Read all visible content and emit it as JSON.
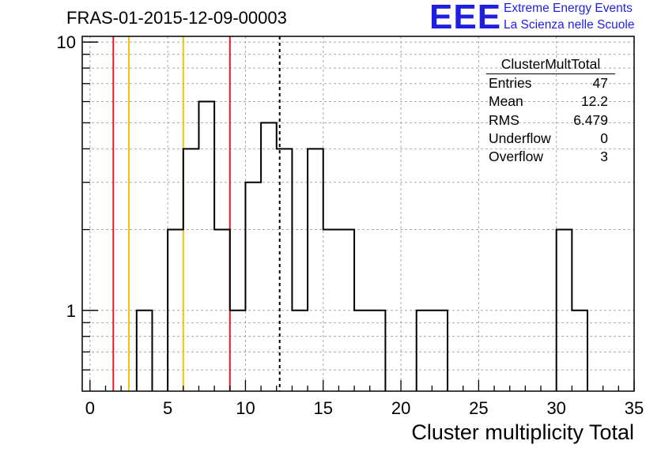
{
  "chart_data": {
    "type": "histogram",
    "title": "FRAS-01-2015-12-09-00003",
    "xlabel": "Cluster multiplicity Total",
    "ylabel": "",
    "xlim": [
      -0.5,
      35
    ],
    "ylim": [
      0.5,
      10.5
    ],
    "yscale": "log",
    "grid": true,
    "bin_width": 1,
    "bin_low_edges": [
      3,
      4,
      5,
      6,
      7,
      8,
      9,
      10,
      11,
      12,
      13,
      14,
      15,
      16,
      17,
      18,
      19,
      20,
      21,
      22,
      23,
      24,
      25,
      26,
      27,
      28,
      29,
      30,
      31
    ],
    "values": [
      1,
      0,
      2,
      4,
      6,
      2,
      1,
      3,
      5,
      4,
      1,
      4,
      2,
      2,
      1,
      1,
      0,
      0,
      1,
      1,
      0,
      0,
      0,
      0,
      0,
      0,
      0,
      2,
      1
    ],
    "x_ticks": [
      0,
      5,
      10,
      15,
      20,
      25,
      30,
      35
    ],
    "y_ticks": [
      1,
      10
    ],
    "vertical_lines": [
      {
        "x": 1.5,
        "color": "#e41a1c",
        "style": "solid"
      },
      {
        "x": 2.5,
        "color": "#f2c20f",
        "style": "solid"
      },
      {
        "x": 6.0,
        "color": "#f2c20f",
        "style": "solid"
      },
      {
        "x": 9.0,
        "color": "#e41a1c",
        "style": "solid"
      },
      {
        "x": 12.2,
        "color": "#000000",
        "style": "dashed"
      }
    ]
  },
  "stats_box": {
    "name": "ClusterMultTotal",
    "rows": [
      {
        "label": "Entries",
        "value": "47"
      },
      {
        "label": "Mean",
        "value": "12.2"
      },
      {
        "label": "RMS",
        "value": "6.479"
      },
      {
        "label": "Underflow",
        "value": "0"
      },
      {
        "label": "Overflow",
        "value": "3"
      }
    ]
  },
  "logo": {
    "text": "EEE",
    "line1": "Extreme Energy Events",
    "line2": "La Scienza nelle Scuole",
    "color": "#1f1fe0"
  }
}
